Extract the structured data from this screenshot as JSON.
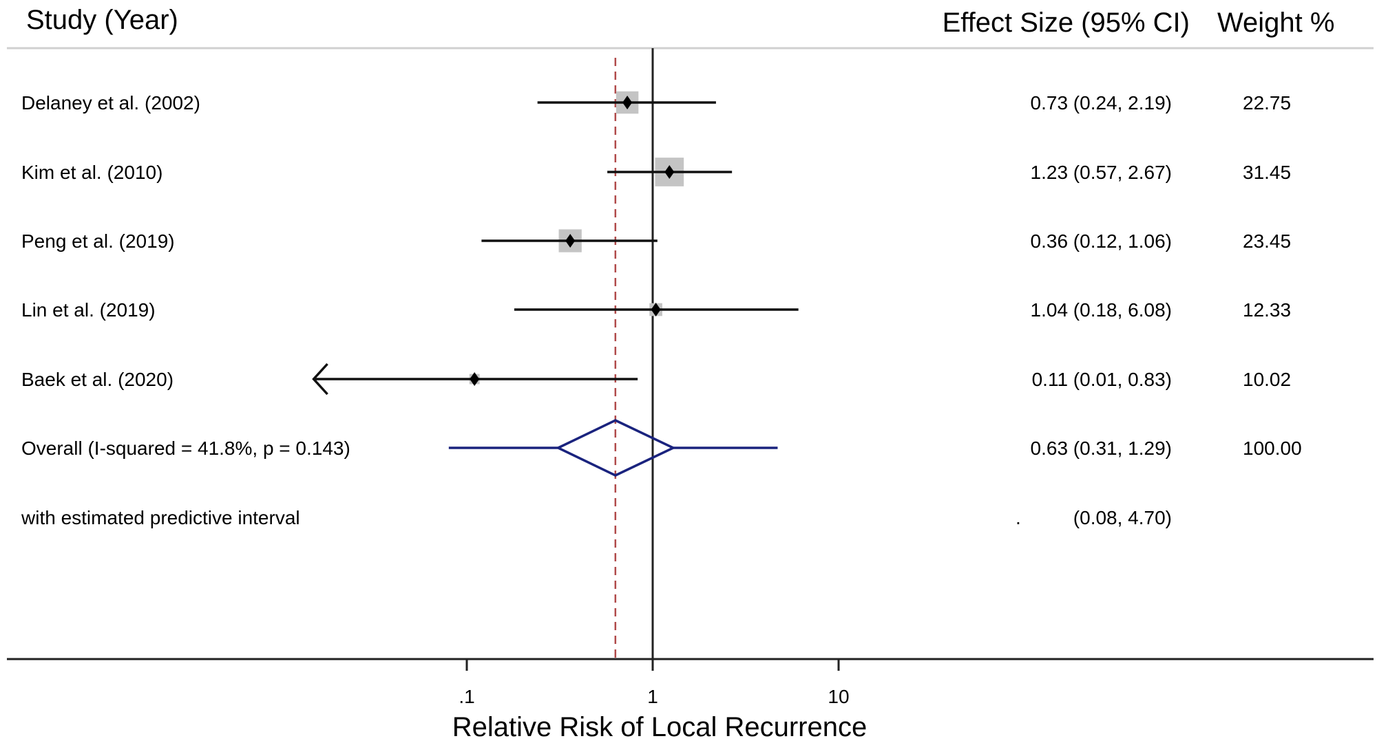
{
  "chart_data": {
    "type": "forest",
    "headers": {
      "study": "Study (Year)",
      "effect": "Effect Size (95% CI)",
      "weight": "Weight %"
    },
    "xlabel": "Relative Risk of Local Recurrence",
    "xscale": "log",
    "xlim": [
      0.015,
      100
    ],
    "xticks": [
      {
        "value": 0.1,
        "label": ".1"
      },
      {
        "value": 1,
        "label": "1"
      },
      {
        "value": 10,
        "label": "10"
      }
    ],
    "studies": [
      {
        "label": "Delaney et al. (2002)",
        "es": 0.73,
        "lo": 0.24,
        "hi": 2.19,
        "es_text": "0.73 (0.24, 2.19)",
        "weight": 22.75,
        "weight_text": "22.75"
      },
      {
        "label": "Kim et al. (2010)",
        "es": 1.23,
        "lo": 0.57,
        "hi": 2.67,
        "es_text": "1.23 (0.57, 2.67)",
        "weight": 31.45,
        "weight_text": "31.45"
      },
      {
        "label": "Peng et al. (2019)",
        "es": 0.36,
        "lo": 0.12,
        "hi": 1.06,
        "es_text": "0.36 (0.12, 1.06)",
        "weight": 23.45,
        "weight_text": "23.45"
      },
      {
        "label": "Lin et al. (2019)",
        "es": 1.04,
        "lo": 0.18,
        "hi": 6.08,
        "es_text": "1.04 (0.18, 6.08)",
        "weight": 12.33,
        "weight_text": "12.33"
      },
      {
        "label": "Baek et al. (2020)",
        "es": 0.11,
        "lo": 0.01,
        "hi": 0.83,
        "es_text": "0.11 (0.01, 0.83)",
        "weight": 10.02,
        "weight_text": "10.02"
      }
    ],
    "overall": {
      "label": "Overall  (I-squared = 41.8%, p = 0.143)",
      "es": 0.63,
      "lo": 0.31,
      "hi": 1.29,
      "es_text": "0.63 (0.31, 1.29)",
      "weight_text": "100.00"
    },
    "predictive": {
      "label": "with estimated predictive interval",
      "dot": ".",
      "lo": 0.08,
      "hi": 4.7,
      "text": "(0.08, 4.70)"
    },
    "null_line": 1,
    "colors": {
      "ci": "#111111",
      "box": "#c4c4c4",
      "overall": "#1a237e",
      "ref_line": "#b04a4a",
      "header_rule": "#d0d0d0"
    }
  }
}
